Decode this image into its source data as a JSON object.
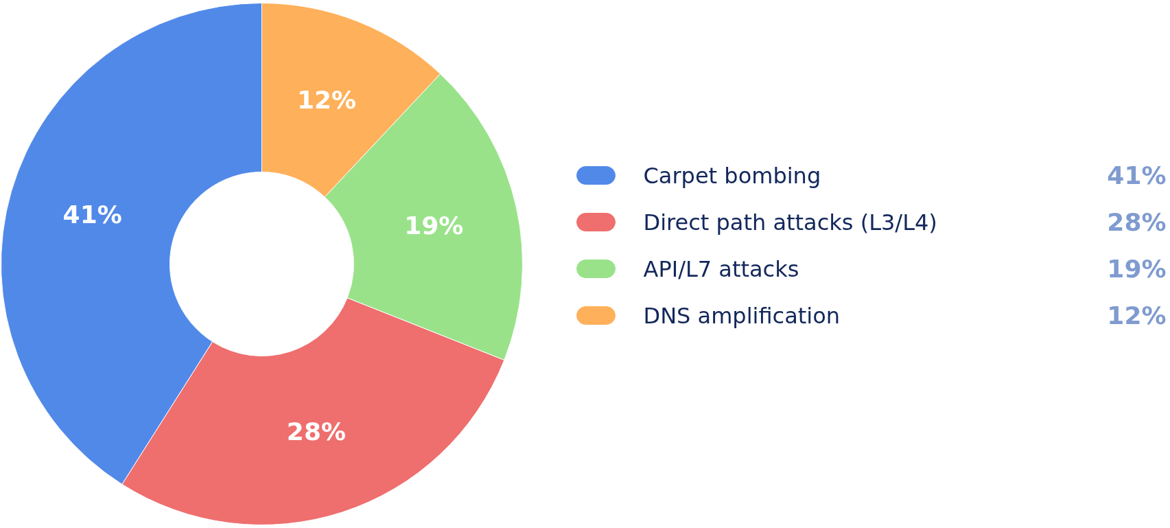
{
  "chart_data": {
    "type": "donut",
    "categories": [
      "Carpet bombing",
      "Direct path attacks (L3/L4)",
      "API/L7 attacks",
      "DNS amplification"
    ],
    "values": [
      41,
      28,
      19,
      12
    ],
    "colors": [
      "#5189e9",
      "#ef6e6e",
      "#99e28a",
      "#ffb05a"
    ],
    "value_labels": [
      "41%",
      "28%",
      "19%",
      "12%"
    ],
    "legend": "right"
  }
}
